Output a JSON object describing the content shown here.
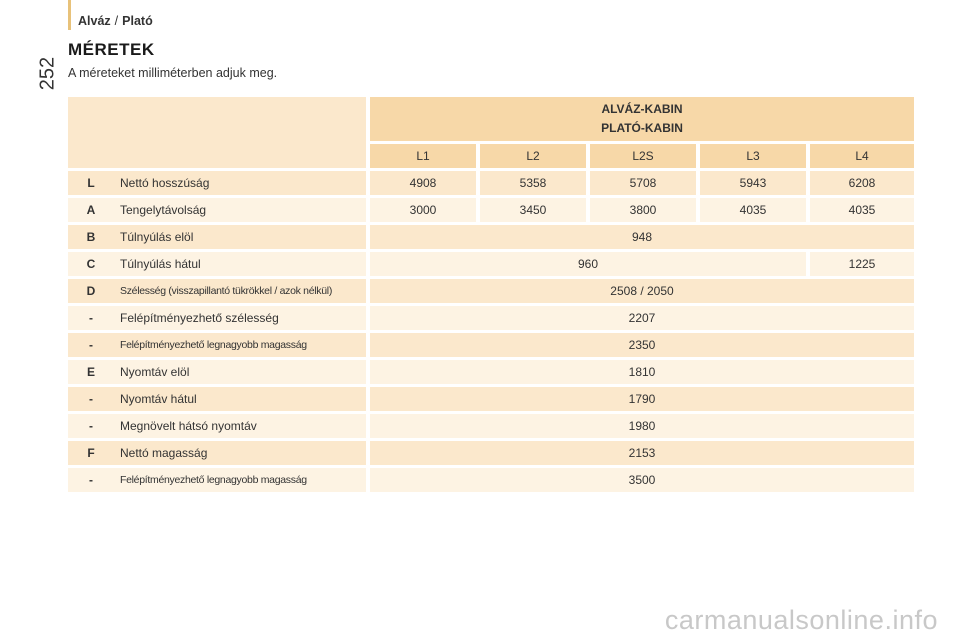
{
  "header": {
    "breadcrumb_part1": "Alváz",
    "breadcrumb_sep": "/",
    "breadcrumb_part2": "Plató",
    "page_number": "252"
  },
  "section": {
    "title": "MÉRETEK",
    "subtitle": "A méreteket milliméterben adjuk meg."
  },
  "table": {
    "group_line1": "ALVÁZ-KABIN",
    "group_line2": "PLATÓ-KABIN",
    "columns": [
      "L1",
      "L2",
      "L2S",
      "L3",
      "L4"
    ],
    "rows": [
      {
        "code": "L",
        "label": "Nettó hosszúság",
        "values": [
          "4908",
          "5358",
          "5708",
          "5943",
          "6208"
        ]
      },
      {
        "code": "A",
        "label": "Tengelytávolság",
        "values": [
          "3000",
          "3450",
          "3800",
          "4035",
          "4035"
        ]
      },
      {
        "code": "B",
        "label": "Túlnyúlás elöl",
        "value": "948"
      },
      {
        "code": "C",
        "label": "Túlnyúlás hátul",
        "value_l1_l3": "960",
        "value_l4": "1225"
      },
      {
        "code": "D",
        "label": "Szélesség (visszapillantó tükrökkel / azok nélkül)",
        "value": "2508 / 2050"
      },
      {
        "code": "-",
        "label": "Felépítményezhető szélesség",
        "value": "2207"
      },
      {
        "code": "-",
        "label": "Felépítményezhető legnagyobb magasság",
        "value": "2350"
      },
      {
        "code": "E",
        "label": "Nyomtáv elöl",
        "value": "1810"
      },
      {
        "code": "-",
        "label": "Nyomtáv hátul",
        "value": "1790"
      },
      {
        "code": "-",
        "label": "Megnövelt hátsó nyomtáv",
        "value": "1980"
      },
      {
        "code": "F",
        "label": "Nettó magasság",
        "value": "2153"
      },
      {
        "code": "-",
        "label": "Felépítményezhető legnagyobb magasság",
        "value": "3500"
      }
    ]
  },
  "watermark": "carmanualsonline.info",
  "colors": {
    "accent": "#e8c27a",
    "header_fill": "#f7d8a8",
    "row_shade": "#fbe8cc",
    "row_light": "#fdf3e3"
  }
}
